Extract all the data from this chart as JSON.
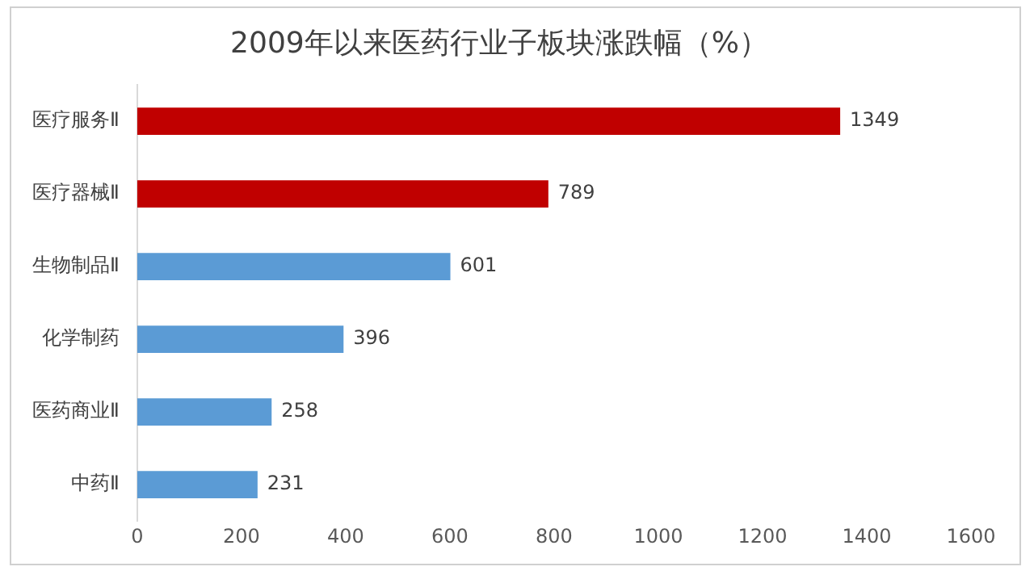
{
  "chart_data": {
    "type": "bar",
    "orientation": "horizontal",
    "title": "2009年以来医药行业子板块涨跌幅（%）",
    "categories": [
      "医疗服务Ⅱ",
      "医疗器械Ⅱ",
      "生物制品Ⅱ",
      "化学制药",
      "医药商业Ⅱ",
      "中药Ⅱ"
    ],
    "values": [
      1349,
      789,
      601,
      396,
      258,
      231
    ],
    "colors": [
      "#c00000",
      "#c00000",
      "#5b9bd5",
      "#5b9bd5",
      "#5b9bd5",
      "#5b9bd5"
    ],
    "xlim": [
      0,
      1600
    ],
    "xticks": [
      0,
      200,
      400,
      600,
      800,
      1000,
      1200,
      1400,
      1600
    ],
    "grid": false,
    "legend": false,
    "data_labels": true
  }
}
